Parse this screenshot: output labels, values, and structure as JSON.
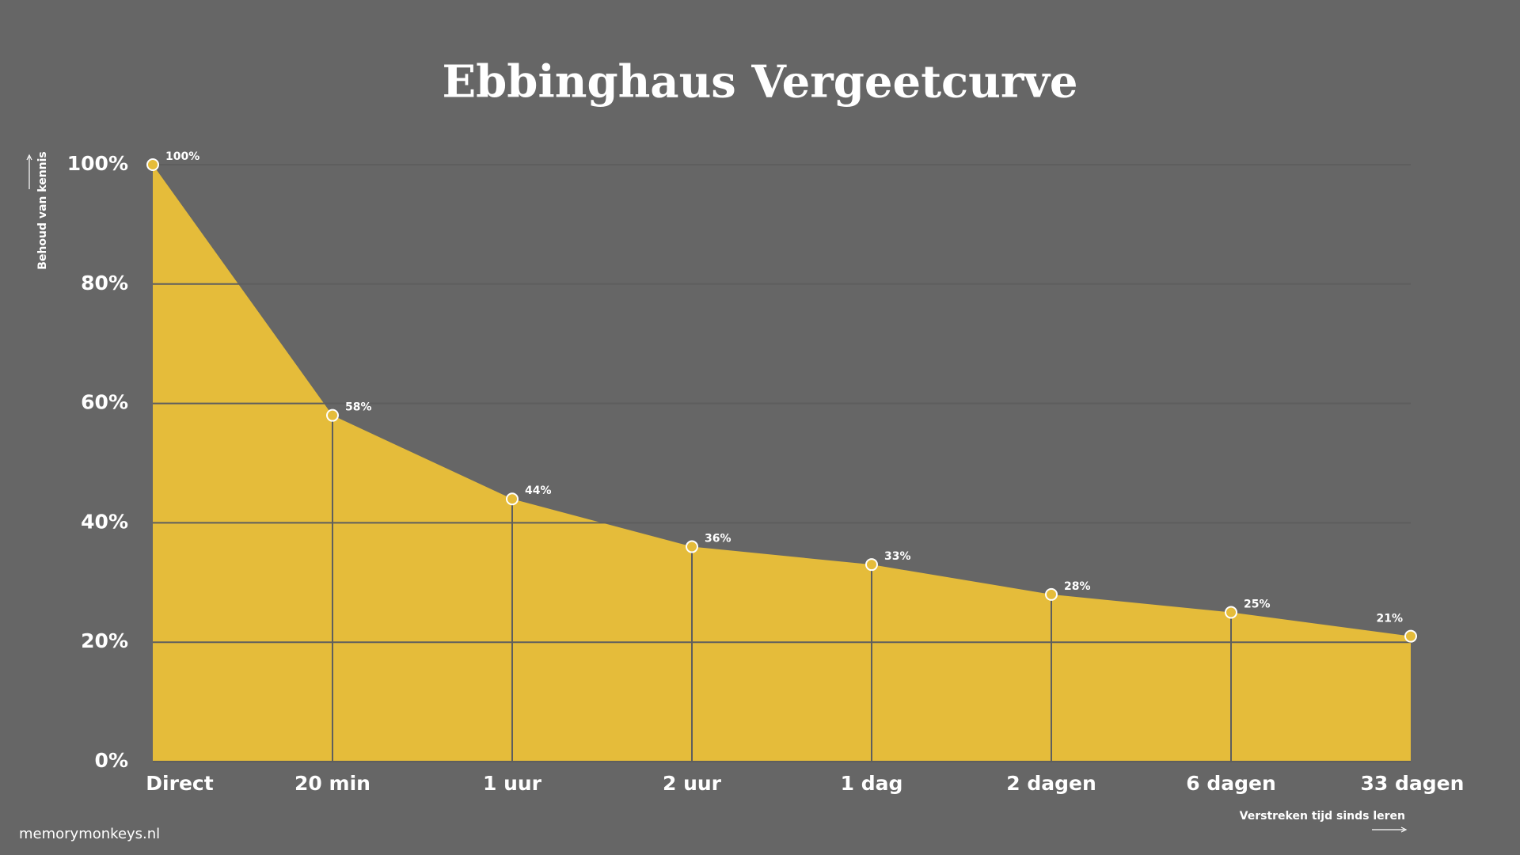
{
  "chart_data": {
    "type": "area",
    "title": "Ebbinghaus Vergeetcurve",
    "y_label": "Behoud van kennis",
    "x_label": "Verstreken tijd sinds leren",
    "source": "memorymonkeys.nl",
    "categories": [
      "Direct",
      "20 min",
      "1 uur",
      "2 uur",
      "1 dag",
      "2 dagen",
      "6 dagen",
      "33 dagen"
    ],
    "values": [
      100,
      58,
      44,
      36,
      33,
      28,
      25,
      21
    ],
    "value_labels": [
      "100%",
      "58%",
      "44%",
      "36%",
      "33%",
      "28%",
      "25%",
      "21%"
    ],
    "color": "#e5bc3a",
    "ylim": [
      0,
      100
    ],
    "yticks": [
      {
        "value": 0,
        "label": "0%"
      },
      {
        "value": 20,
        "label": "20%"
      },
      {
        "value": 40,
        "label": "40%"
      },
      {
        "value": 60,
        "label": "60%"
      },
      {
        "value": 80,
        "label": "80%"
      },
      {
        "value": 100,
        "label": "100%"
      }
    ],
    "grid": true
  }
}
